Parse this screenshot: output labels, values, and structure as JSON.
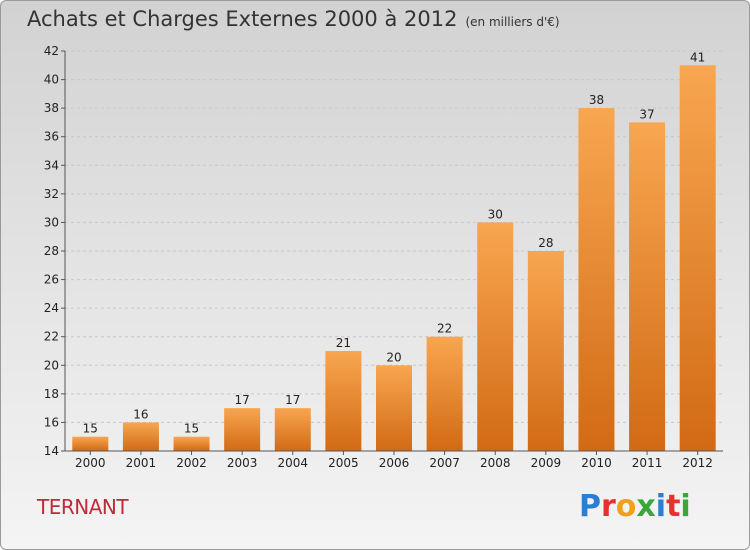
{
  "header": {
    "title": "Achats et Charges Externes 2000 à 2012",
    "subtitle": "(en milliers d'€)"
  },
  "commune": "TERNANT",
  "logo": {
    "text": "Proxiti",
    "letter_colors": [
      "#2a7fd4",
      "#e8302e",
      "#f0a020",
      "#3aa53a",
      "#2a7fd4",
      "#e8302e",
      "#3aa53a"
    ]
  },
  "colors": {
    "bar_top": "#f8a650",
    "bar_bottom": "#d26a14",
    "grid": "#c8c8c8"
  },
  "chart_data": {
    "type": "bar",
    "title": "Achats et Charges Externes 2000 à 2012",
    "subtitle": "(en milliers d'€)",
    "categories": [
      "2000",
      "2001",
      "2002",
      "2003",
      "2004",
      "2005",
      "2006",
      "2007",
      "2008",
      "2009",
      "2010",
      "2011",
      "2012"
    ],
    "values": [
      15,
      16,
      15,
      17,
      17,
      21,
      20,
      22,
      30,
      28,
      38,
      37,
      41
    ],
    "ylim": [
      14,
      42
    ],
    "yticks": [
      14,
      16,
      18,
      20,
      22,
      24,
      26,
      28,
      30,
      32,
      34,
      36,
      38,
      40,
      42
    ],
    "grid": "horizontal, dashed",
    "legend": "none"
  }
}
